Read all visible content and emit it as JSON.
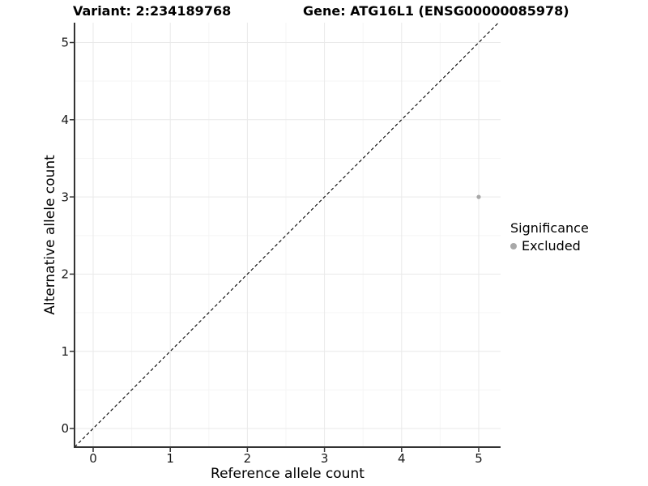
{
  "colors": {
    "background": "#ffffff",
    "axis_line": "#333333",
    "tick_mark": "#333333",
    "tick_label": "#1a1a1a",
    "grid_major": "#e9e9e9",
    "grid_minor": "#f5f5f5",
    "text": "#000000",
    "excluded_point": "#a8a8a8",
    "identity_line": "#000000"
  },
  "chart_data": {
    "type": "scatter",
    "titles": {
      "left": "Variant: 2:234189768",
      "right": "Gene: ATG16L1 (ENSG00000085978)"
    },
    "xlabel": "Reference allele count",
    "ylabel": "Alternative allele count",
    "x_ticks": [
      0,
      1,
      2,
      3,
      4,
      5
    ],
    "y_ticks": [
      0,
      1,
      2,
      3,
      4,
      5
    ],
    "xlim": [
      -0.24,
      5.28
    ],
    "ylim": [
      -0.24,
      5.26
    ],
    "grid": {
      "major": true,
      "minor": true,
      "minor_step": 0.5
    },
    "identity_line": {
      "equation": "y = x",
      "style": "dashed",
      "color": "#000000"
    },
    "series": [
      {
        "name": "Excluded",
        "color": "#a8a8a8",
        "marker": "circle",
        "points": [
          {
            "x": 5,
            "y": 3
          }
        ]
      }
    ],
    "legend": {
      "title": "Significance",
      "position": "right",
      "items": [
        {
          "label": "Excluded",
          "color": "#a8a8a8",
          "marker": "circle"
        }
      ]
    }
  }
}
